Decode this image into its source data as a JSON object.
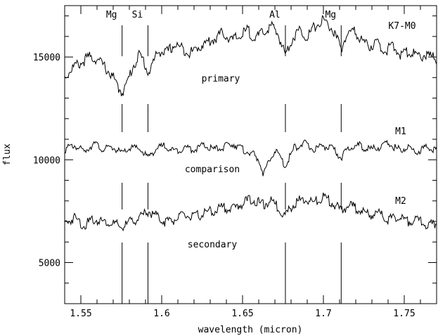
{
  "chart_data": {
    "type": "line",
    "title": "",
    "xlabel": "wavelength (micron)",
    "ylabel": "flux",
    "xlim": [
      1.54,
      1.77
    ],
    "ylim": [
      3000,
      17500
    ],
    "x_ticks": [
      1.55,
      1.6,
      1.65,
      1.7,
      1.75
    ],
    "x_tick_labels": [
      "1.55",
      "1.6",
      "1.65",
      "1.7",
      "1.75"
    ],
    "y_ticks": [
      5000,
      10000,
      15000
    ],
    "y_tick_labels": [
      "5000",
      "10000",
      "15000"
    ],
    "grid": false,
    "line_features": [
      {
        "label": "Mg",
        "x": 1.5755
      },
      {
        "label": "Si",
        "x": 1.5915
      },
      {
        "label": "Al",
        "x": 1.6765
      },
      {
        "label": "Mg",
        "x": 1.711
      }
    ],
    "series": [
      {
        "spectral_type": "K7-M0",
        "curve_label": "primary",
        "points": [
          [
            1.54,
            14000
          ],
          [
            1.545,
            14500
          ],
          [
            1.55,
            14700
          ],
          [
            1.555,
            15000
          ],
          [
            1.56,
            14900
          ],
          [
            1.565,
            14500
          ],
          [
            1.57,
            14000
          ],
          [
            1.573,
            13500
          ],
          [
            1.5755,
            13300
          ],
          [
            1.578,
            13600
          ],
          [
            1.582,
            14500
          ],
          [
            1.586,
            15100
          ],
          [
            1.589,
            14800
          ],
          [
            1.5915,
            14200
          ],
          [
            1.594,
            14600
          ],
          [
            1.598,
            15300
          ],
          [
            1.603,
            15200
          ],
          [
            1.608,
            15600
          ],
          [
            1.613,
            15400
          ],
          [
            1.618,
            15200
          ],
          [
            1.623,
            15500
          ],
          [
            1.628,
            15700
          ],
          [
            1.633,
            15900
          ],
          [
            1.638,
            16200
          ],
          [
            1.643,
            15800
          ],
          [
            1.648,
            16000
          ],
          [
            1.653,
            16300
          ],
          [
            1.658,
            15900
          ],
          [
            1.663,
            16200
          ],
          [
            1.668,
            16500
          ],
          [
            1.672,
            16100
          ],
          [
            1.6765,
            15100
          ],
          [
            1.68,
            15800
          ],
          [
            1.685,
            16300
          ],
          [
            1.69,
            16000
          ],
          [
            1.695,
            16500
          ],
          [
            1.7,
            16800
          ],
          [
            1.705,
            16400
          ],
          [
            1.708,
            15900
          ],
          [
            1.711,
            15400
          ],
          [
            1.714,
            16000
          ],
          [
            1.718,
            16300
          ],
          [
            1.723,
            15900
          ],
          [
            1.728,
            15500
          ],
          [
            1.733,
            15700
          ],
          [
            1.738,
            15300
          ],
          [
            1.743,
            15500
          ],
          [
            1.748,
            15100
          ],
          [
            1.753,
            15300
          ],
          [
            1.758,
            15000
          ],
          [
            1.763,
            15100
          ],
          [
            1.77,
            14900
          ]
        ]
      },
      {
        "spectral_type": "M1",
        "curve_label": "comparison",
        "points": [
          [
            1.54,
            10500
          ],
          [
            1.546,
            10700
          ],
          [
            1.552,
            10400
          ],
          [
            1.558,
            10800
          ],
          [
            1.564,
            10500
          ],
          [
            1.57,
            10600
          ],
          [
            1.5755,
            10300
          ],
          [
            1.581,
            10600
          ],
          [
            1.587,
            10500
          ],
          [
            1.5915,
            10100
          ],
          [
            1.596,
            10500
          ],
          [
            1.602,
            10700
          ],
          [
            1.608,
            10400
          ],
          [
            1.614,
            10600
          ],
          [
            1.62,
            10500
          ],
          [
            1.626,
            10700
          ],
          [
            1.632,
            10500
          ],
          [
            1.638,
            10600
          ],
          [
            1.644,
            10800
          ],
          [
            1.65,
            10500
          ],
          [
            1.656,
            10300
          ],
          [
            1.66,
            10000
          ],
          [
            1.663,
            9300
          ],
          [
            1.666,
            9800
          ],
          [
            1.67,
            10500
          ],
          [
            1.6765,
            9700
          ],
          [
            1.682,
            10600
          ],
          [
            1.688,
            10800
          ],
          [
            1.694,
            10500
          ],
          [
            1.7,
            10700
          ],
          [
            1.706,
            10500
          ],
          [
            1.711,
            10100
          ],
          [
            1.716,
            10600
          ],
          [
            1.722,
            10700
          ],
          [
            1.728,
            10500
          ],
          [
            1.734,
            10600
          ],
          [
            1.74,
            10800
          ],
          [
            1.746,
            10500
          ],
          [
            1.752,
            10600
          ],
          [
            1.758,
            10400
          ],
          [
            1.764,
            10600
          ],
          [
            1.77,
            10500
          ]
        ]
      },
      {
        "spectral_type": "M2",
        "curve_label": "secondary",
        "points": [
          [
            1.54,
            6900
          ],
          [
            1.546,
            7200
          ],
          [
            1.552,
            6800
          ],
          [
            1.558,
            7100
          ],
          [
            1.564,
            7000
          ],
          [
            1.57,
            6900
          ],
          [
            1.5755,
            6700
          ],
          [
            1.581,
            7000
          ],
          [
            1.587,
            7200
          ],
          [
            1.5915,
            7500
          ],
          [
            1.596,
            7300
          ],
          [
            1.602,
            7000
          ],
          [
            1.608,
            7100
          ],
          [
            1.614,
            7300
          ],
          [
            1.62,
            7200
          ],
          [
            1.626,
            7400
          ],
          [
            1.632,
            7500
          ],
          [
            1.638,
            7700
          ],
          [
            1.644,
            7600
          ],
          [
            1.65,
            7900
          ],
          [
            1.656,
            8100
          ],
          [
            1.662,
            7800
          ],
          [
            1.668,
            8000
          ],
          [
            1.6765,
            7300
          ],
          [
            1.682,
            7900
          ],
          [
            1.688,
            8100
          ],
          [
            1.694,
            7900
          ],
          [
            1.7,
            8200
          ],
          [
            1.706,
            7900
          ],
          [
            1.711,
            7500
          ],
          [
            1.716,
            7800
          ],
          [
            1.722,
            7600
          ],
          [
            1.728,
            7300
          ],
          [
            1.734,
            7400
          ],
          [
            1.74,
            7100
          ],
          [
            1.746,
            7200
          ],
          [
            1.752,
            7000
          ],
          [
            1.758,
            7100
          ],
          [
            1.764,
            6800
          ],
          [
            1.77,
            6900
          ]
        ]
      }
    ]
  }
}
